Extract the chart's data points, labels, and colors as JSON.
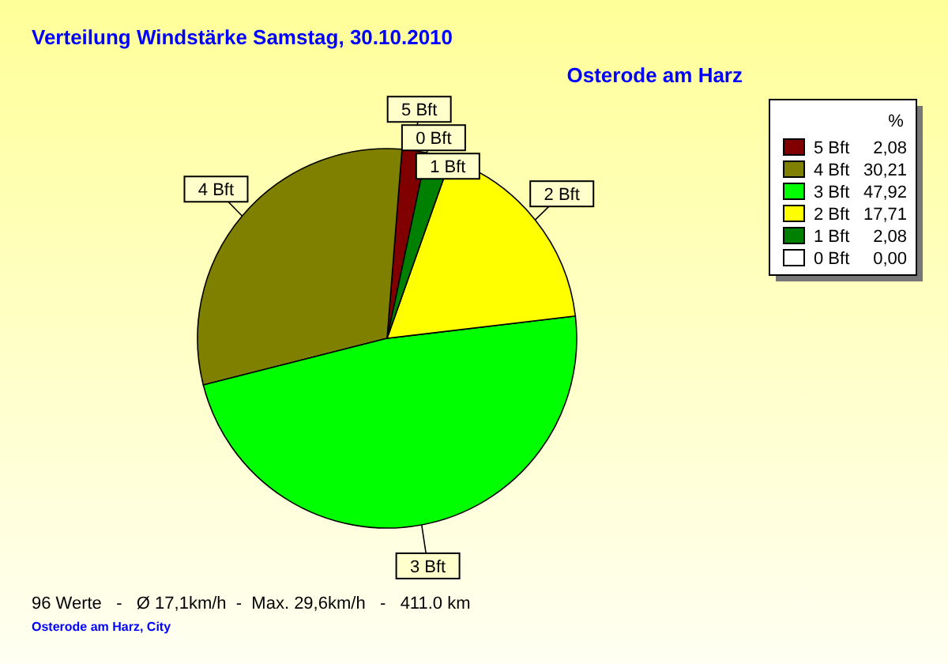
{
  "chart_data": {
    "type": "pie",
    "title": "Verteilung Windstärke  Samstag, 30.10.2010",
    "subtitle": "Osterode am Harz",
    "categories": [
      "5 Bft",
      "4 Bft",
      "3 Bft",
      "2 Bft",
      "1 Bft",
      "0 Bft"
    ],
    "values": [
      2.08,
      30.21,
      47.92,
      17.71,
      2.08,
      0
    ],
    "value_labels": [
      "2,08",
      "30,21",
      "47,92",
      "17,71",
      "2,08",
      "0,00"
    ],
    "colors": [
      "#800000",
      "#808000",
      "#00ff00",
      "#ffff00",
      "#008000",
      "#ffffff"
    ],
    "legend": "top right",
    "legend_title": "%",
    "annotations": [
      "96 Werte   -   Ø 17,1km/h  -  Max. 29,6km/h   -   411.0 km",
      "Osterode am Harz, City"
    ]
  }
}
